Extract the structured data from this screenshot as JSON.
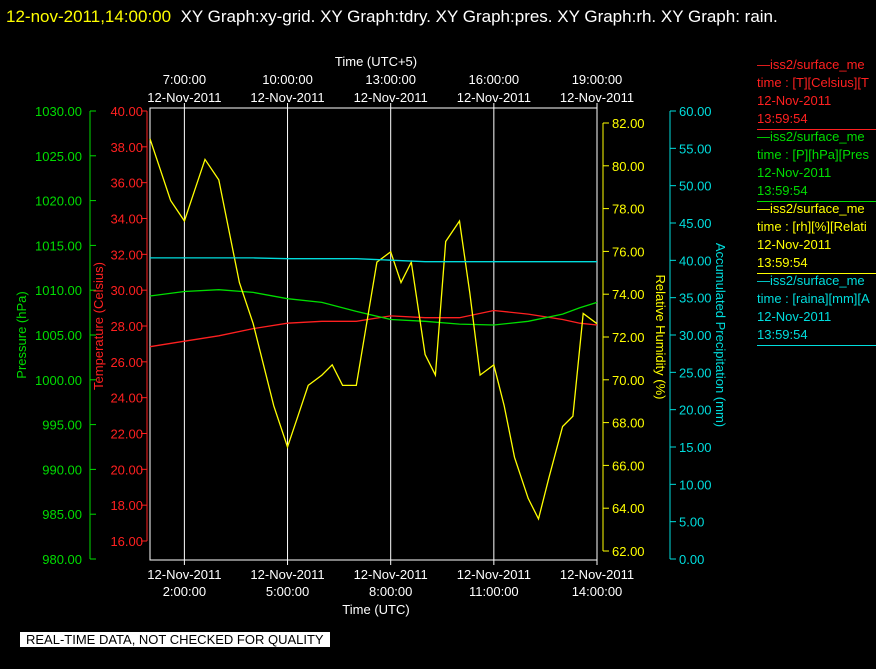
{
  "header": {
    "timestamp": "12-nov-2011,14:00:00",
    "titles": "XY Graph:xy-grid.  XY Graph:tdry.  XY Graph:pres.  XY Graph:rh.  XY Graph: rain."
  },
  "axes": {
    "top_title": "Time (UTC+5)",
    "bottom_title": "Time (UTC)",
    "top_ticks": [
      {
        "date": "12-Nov-2011",
        "time": "7:00:00"
      },
      {
        "date": "12-Nov-2011",
        "time": "10:00:00"
      },
      {
        "date": "12-Nov-2011",
        "time": "13:00:00"
      },
      {
        "date": "12-Nov-2011",
        "time": "16:00:00"
      },
      {
        "date": "12-Nov-2011",
        "time": "19:00:00"
      }
    ],
    "bottom_ticks": [
      {
        "date": "12-Nov-2011",
        "time": "2:00:00"
      },
      {
        "date": "12-Nov-2011",
        "time": "5:00:00"
      },
      {
        "date": "12-Nov-2011",
        "time": "8:00:00"
      },
      {
        "date": "12-Nov-2011",
        "time": "11:00:00"
      },
      {
        "date": "12-Nov-2011",
        "time": "14:00:00"
      }
    ],
    "pressure": {
      "label": "Pressure (hPa)",
      "color": "#00dd00",
      "ticks": [
        "980.00",
        "985.00",
        "990.00",
        "995.00",
        "1000.00",
        "1005.00",
        "1010.00",
        "1015.00",
        "1020.00",
        "1025.00",
        "1030.00"
      ]
    },
    "temperature": {
      "label": "Temperature (Celsius)",
      "color": "#ff2020",
      "ticks": [
        "16.00",
        "18.00",
        "20.00",
        "22.00",
        "24.00",
        "26.00",
        "28.00",
        "30.00",
        "32.00",
        "34.00",
        "36.00",
        "38.00",
        "40.00"
      ]
    },
    "humidity": {
      "label": "Relative Humidity (%)",
      "color": "#ffff00",
      "ticks": [
        "62.00",
        "64.00",
        "66.00",
        "68.00",
        "70.00",
        "72.00",
        "74.00",
        "76.00",
        "78.00",
        "80.00",
        "82.00"
      ]
    },
    "precip": {
      "label": "Accumulated Precipitation (mm)",
      "color": "#00dddd",
      "ticks": [
        "0.00",
        "5.00",
        "10.00",
        "15.00",
        "20.00",
        "25.00",
        "30.00",
        "35.00",
        "40.00",
        "45.00",
        "50.00",
        "55.00",
        "60.00"
      ]
    }
  },
  "legend": [
    {
      "line1": "—iss2/surface_me",
      "line2": "time : [T][Celsius][T",
      "date": "12-Nov-2011",
      "time": "13:59:54",
      "color": "#ff2020"
    },
    {
      "line1": "—iss2/surface_me",
      "line2": "time : [P][hPa][Pres",
      "date": "12-Nov-2011",
      "time": "13:59:54",
      "color": "#00dd00"
    },
    {
      "line1": "—iss2/surface_me",
      "line2": "time : [rh][%][Relati",
      "date": "12-Nov-2011",
      "time": "13:59:54",
      "color": "#ffff00"
    },
    {
      "line1": "—iss2/surface_me",
      "line2": "time : [raina][mm][A",
      "date": "12-Nov-2011",
      "time": "13:59:54",
      "color": "#00dddd"
    }
  ],
  "notice": "REAL-TIME DATA, NOT CHECKED FOR QUALITY",
  "chart_data": {
    "type": "line",
    "x_unit": "hours UTC, 12-Nov-2011",
    "xlim": [
      1.0,
      14.0
    ],
    "grid": true,
    "series": [
      {
        "name": "Temperature (Celsius)",
        "color": "#ff2020",
        "ylim": [
          15.0,
          40.0
        ],
        "x": [
          1.0,
          2.0,
          3.0,
          4.0,
          5.0,
          6.0,
          7.0,
          8.0,
          9.0,
          10.0,
          11.0,
          12.0,
          13.0,
          13.5,
          14.0
        ],
        "y": [
          26.8,
          27.1,
          27.4,
          27.8,
          28.1,
          28.2,
          28.2,
          28.5,
          28.4,
          28.4,
          28.8,
          28.6,
          28.3,
          28.1,
          28.0
        ]
      },
      {
        "name": "Pressure (hPa)",
        "color": "#00dd00",
        "ylim": [
          980.0,
          1030.0
        ],
        "x": [
          1.0,
          2.0,
          3.0,
          4.0,
          5.0,
          6.0,
          7.0,
          8.0,
          9.0,
          10.0,
          11.0,
          12.0,
          13.0,
          13.5,
          14.0
        ],
        "y": [
          1009.2,
          1009.7,
          1009.9,
          1009.6,
          1008.9,
          1008.5,
          1007.5,
          1006.6,
          1006.4,
          1006.1,
          1006.0,
          1006.4,
          1007.2,
          1007.9,
          1008.5
        ]
      },
      {
        "name": "Relative Humidity (%)",
        "color": "#ffff00",
        "ylim": [
          61.0,
          83.0
        ],
        "x": [
          1.0,
          1.3,
          1.6,
          2.0,
          2.3,
          2.6,
          3.0,
          3.3,
          3.6,
          4.0,
          4.3,
          4.6,
          5.0,
          5.3,
          5.6,
          6.0,
          6.3,
          6.6,
          7.0,
          7.3,
          7.6,
          8.0,
          8.3,
          8.6,
          9.0,
          9.3,
          9.6,
          10.0,
          10.3,
          10.6,
          11.0,
          11.3,
          11.6,
          12.0,
          12.3,
          12.6,
          13.0,
          13.3,
          13.6,
          14.0
        ],
        "y": [
          81.5,
          80.0,
          78.5,
          77.5,
          79.0,
          80.5,
          79.5,
          77.0,
          74.5,
          72.5,
          70.5,
          68.5,
          66.5,
          68.0,
          69.5,
          70.0,
          70.5,
          69.5,
          69.5,
          72.5,
          75.5,
          76.0,
          74.5,
          75.5,
          71.0,
          70.0,
          76.5,
          77.5,
          74.0,
          70.0,
          70.5,
          68.5,
          66.0,
          64.0,
          63.0,
          65.0,
          67.5,
          68.0,
          73.0,
          72.5
        ]
      },
      {
        "name": "Accumulated Precipitation (mm)",
        "color": "#00dddd",
        "ylim": [
          0.0,
          60.0
        ],
        "x": [
          1.0,
          2.0,
          3.0,
          4.0,
          5.0,
          6.0,
          7.0,
          8.0,
          9.0,
          10.0,
          11.0,
          12.0,
          13.0,
          14.0
        ],
        "y": [
          40.1,
          40.1,
          40.1,
          40.1,
          40.0,
          40.0,
          40.0,
          39.8,
          39.6,
          39.6,
          39.6,
          39.6,
          39.6,
          39.6
        ]
      }
    ]
  }
}
